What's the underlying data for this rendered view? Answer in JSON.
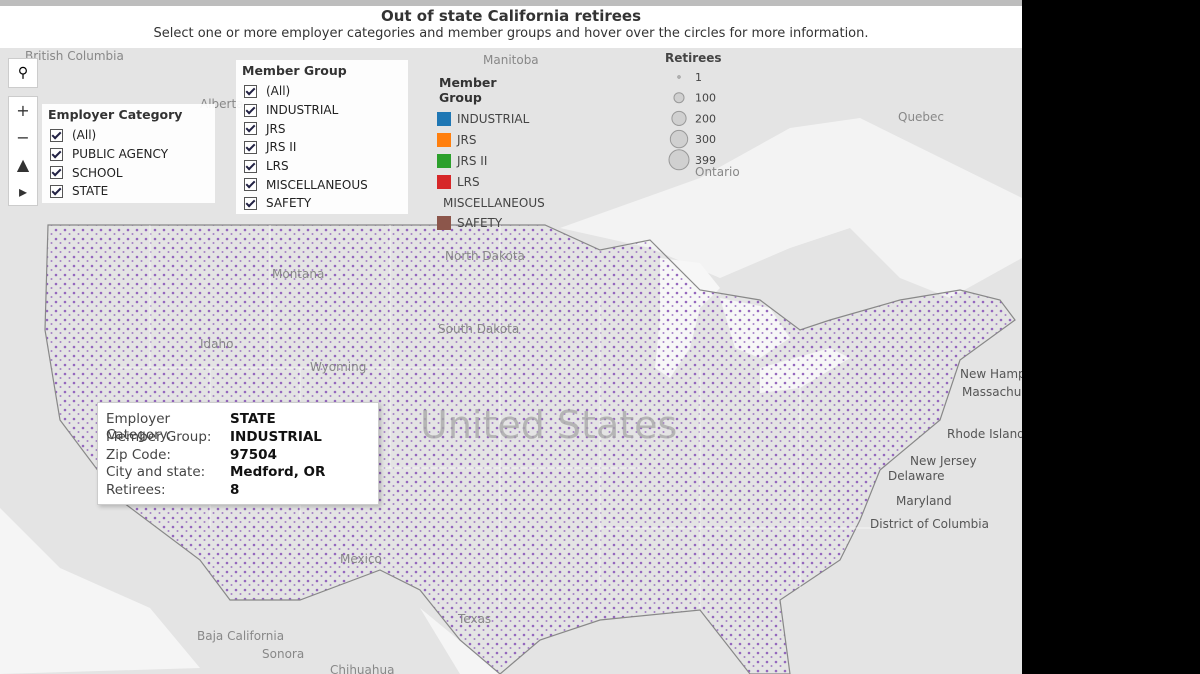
{
  "header": {
    "title": "Out of state California retirees",
    "subtitle": "Select one or more employer categories and member groups and hover over the circles for more information."
  },
  "employer_filter": {
    "title": "Employer Category",
    "options": [
      "(All)",
      "PUBLIC AGENCY",
      "SCHOOL",
      "STATE"
    ]
  },
  "member_filter": {
    "title": "Member Group",
    "options": [
      "(All)",
      "INDUSTRIAL",
      "JRS",
      "JRS II",
      "LRS",
      "MISCELLANEOUS",
      "SAFETY"
    ]
  },
  "color_legend": {
    "title": "Member Group",
    "items": [
      {
        "label": "INDUSTRIAL",
        "color": "#1f77b4"
      },
      {
        "label": "JRS",
        "color": "#ff7f0e"
      },
      {
        "label": "JRS II",
        "color": "#2ca02c"
      },
      {
        "label": "LRS",
        "color": "#d62728"
      },
      {
        "label": "MISCELLANEOUS",
        "color": "#9467bd"
      },
      {
        "label": "SAFETY",
        "color": "#8c564b"
      }
    ]
  },
  "size_legend": {
    "title": "Retirees",
    "values": [
      1,
      100,
      200,
      300,
      399
    ]
  },
  "tooltip": {
    "rows": [
      {
        "label": "Employer Category:",
        "value": "STATE"
      },
      {
        "label": "Member Group:",
        "value": "INDUSTRIAL"
      },
      {
        "label": "Zip Code:",
        "value": 97504
      },
      {
        "label": "City and state:",
        "value": "Medford, OR"
      },
      {
        "label": "Retirees:",
        "value": 8
      }
    ]
  },
  "map_labels": [
    "British Columbia",
    "Alberta",
    "Manitoba",
    "Quebec",
    "Ontario",
    "Montana",
    "North Dakota",
    "South Dakota",
    "Idaho",
    "Wyoming",
    "United States",
    "New Hampshire",
    "Massachusetts",
    "Rhode Island",
    "New Jersey",
    "Delaware",
    "Maryland",
    "District of Columbia",
    "Mexico",
    "Texas",
    "Baja California",
    "Sonora",
    "Chihuahua"
  ]
}
